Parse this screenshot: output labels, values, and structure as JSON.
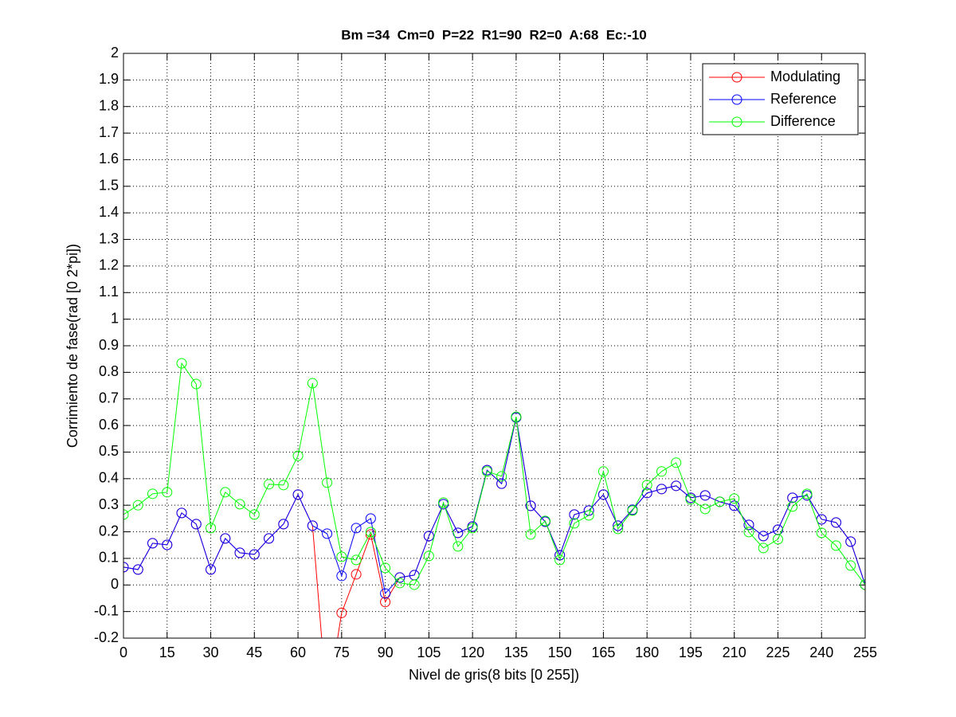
{
  "chart_data": {
    "type": "line",
    "title": "Bm =34  Cm=0  P=22  R1=90  R2=0  A:68  Ec:-10",
    "xlabel": "Nivel de gris(8 bits [0 255])",
    "ylabel": "Corrimiento de fase(rad [0 2*pi])",
    "x": [
      0,
      5,
      10,
      15,
      20,
      25,
      30,
      35,
      40,
      45,
      50,
      55,
      60,
      65,
      70,
      75,
      80,
      85,
      90,
      95,
      100,
      105,
      110,
      115,
      120,
      125,
      130,
      135,
      140,
      145,
      150,
      155,
      160,
      165,
      170,
      175,
      180,
      185,
      190,
      195,
      200,
      205,
      210,
      215,
      220,
      225,
      230,
      235,
      240,
      245,
      250,
      255
    ],
    "series": [
      {
        "name": "Modulating",
        "color": "#ff0000",
        "values": [
          0.067,
          0.058,
          0.157,
          0.151,
          0.271,
          0.229,
          0.058,
          0.175,
          0.121,
          0.115,
          0.175,
          0.229,
          0.34,
          0.223,
          -0.45,
          -0.105,
          0.04,
          0.19,
          -0.064,
          0.028,
          0.037,
          0.184,
          0.304,
          0.196,
          0.22,
          0.432,
          0.381,
          0.63,
          0.298,
          0.238,
          0.112,
          0.265,
          0.28,
          0.34,
          0.223,
          0.283,
          0.346,
          0.361,
          0.373,
          0.328,
          0.337,
          0.313,
          0.298,
          0.226,
          0.184,
          0.208,
          0.328,
          0.337,
          0.247,
          0.235,
          0.163,
          0.001
        ]
      },
      {
        "name": "Reference",
        "color": "#0000ff",
        "values": [
          0.067,
          0.058,
          0.157,
          0.151,
          0.271,
          0.229,
          0.058,
          0.175,
          0.121,
          0.115,
          0.175,
          0.229,
          0.34,
          0.223,
          0.193,
          0.034,
          0.214,
          0.25,
          -0.032,
          0.028,
          0.037,
          0.184,
          0.304,
          0.196,
          0.22,
          0.432,
          0.381,
          0.63,
          0.298,
          0.238,
          0.112,
          0.265,
          0.28,
          0.34,
          0.223,
          0.283,
          0.346,
          0.361,
          0.373,
          0.328,
          0.337,
          0.313,
          0.298,
          0.226,
          0.184,
          0.208,
          0.328,
          0.337,
          0.247,
          0.235,
          0.163,
          0.001
        ]
      },
      {
        "name": "Difference",
        "color": "#00ff00",
        "values": [
          0.265,
          0.3,
          0.343,
          0.349,
          0.834,
          0.756,
          0.214,
          0.349,
          0.304,
          0.265,
          0.379,
          0.376,
          0.486,
          0.759,
          0.385,
          0.106,
          0.094,
          0.199,
          0.064,
          0.007,
          0.001,
          0.109,
          0.31,
          0.145,
          0.214,
          0.427,
          0.409,
          0.633,
          0.19,
          0.241,
          0.094,
          0.232,
          0.262,
          0.427,
          0.211,
          0.28,
          0.376,
          0.427,
          0.46,
          0.322,
          0.286,
          0.313,
          0.325,
          0.199,
          0.139,
          0.172,
          0.295,
          0.343,
          0.196,
          0.148,
          0.073,
          0.001
        ]
      }
    ],
    "xlim": [
      0,
      255
    ],
    "xticks": [
      0,
      15,
      30,
      45,
      60,
      75,
      90,
      105,
      120,
      135,
      150,
      165,
      180,
      195,
      210,
      225,
      240,
      255
    ],
    "ylim": [
      -0.2,
      2
    ],
    "yticks": [
      -0.2,
      -0.1,
      0,
      0.1,
      0.2,
      0.3,
      0.4,
      0.5,
      0.6,
      0.7,
      0.8,
      0.9,
      1,
      1.1,
      1.2,
      1.3,
      1.4,
      1.5,
      1.6,
      1.7,
      1.8,
      1.9,
      2
    ],
    "grid": true,
    "legend": "upper right"
  }
}
